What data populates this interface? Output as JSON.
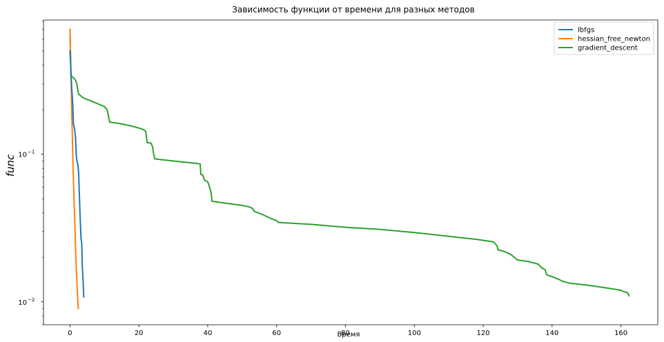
{
  "chart_data": {
    "type": "line",
    "title": "Зависимость функции от времени для разных методов",
    "xlabel": "Время",
    "ylabel": "func",
    "xlim": [
      -7.7,
      170.7
    ],
    "ylim_log10": [
      -2.155,
      -0.091
    ],
    "y_scale": "log",
    "grid": false,
    "legend_position": "top-right",
    "x_ticks": [
      {
        "value": 0,
        "label": "0"
      },
      {
        "value": 20,
        "label": "20"
      },
      {
        "value": 40,
        "label": "40"
      },
      {
        "value": 60,
        "label": "60"
      },
      {
        "value": 80,
        "label": "80"
      },
      {
        "value": 100,
        "label": "100"
      },
      {
        "value": 120,
        "label": "120"
      },
      {
        "value": 140,
        "label": "140"
      },
      {
        "value": 160,
        "label": "160"
      }
    ],
    "y_major_ticks": [
      {
        "value": 0.01,
        "base": "10",
        "exp": "−2"
      },
      {
        "value": 0.1,
        "base": "10",
        "exp": "−1"
      }
    ],
    "series": [
      {
        "name": "lbfgs",
        "color": "#1f77b4",
        "points": [
          [
            0.0,
            0.5
          ],
          [
            0.3,
            0.35
          ],
          [
            0.5,
            0.28
          ],
          [
            0.8,
            0.22
          ],
          [
            1.0,
            0.16
          ],
          [
            1.3,
            0.15
          ],
          [
            1.6,
            0.13
          ],
          [
            1.8,
            0.1
          ],
          [
            2.0,
            0.09
          ],
          [
            2.3,
            0.085
          ],
          [
            2.5,
            0.075
          ],
          [
            2.7,
            0.055
          ],
          [
            2.9,
            0.04
          ],
          [
            3.0,
            0.035
          ],
          [
            3.2,
            0.027
          ],
          [
            3.4,
            0.025
          ],
          [
            3.6,
            0.017
          ],
          [
            3.8,
            0.014
          ],
          [
            4.0,
            0.0108
          ]
        ]
      },
      {
        "name": "hessian_free_newton",
        "color": "#ff7f0e",
        "points": [
          [
            0.0,
            0.7
          ],
          [
            0.5,
            0.2
          ],
          [
            0.9,
            0.08
          ],
          [
            1.3,
            0.04
          ],
          [
            1.7,
            0.02
          ],
          [
            2.1,
            0.012
          ],
          [
            2.4,
            0.009
          ]
        ]
      },
      {
        "name": "gradient_descent",
        "color": "#2ca02c",
        "points": [
          [
            0.0,
            0.7
          ],
          [
            0.3,
            0.34
          ],
          [
            1.0,
            0.33
          ],
          [
            1.5,
            0.32
          ],
          [
            2.0,
            0.3
          ],
          [
            2.3,
            0.27
          ],
          [
            2.5,
            0.255
          ],
          [
            4.0,
            0.24
          ],
          [
            6.0,
            0.23
          ],
          [
            8.0,
            0.22
          ],
          [
            10.0,
            0.21
          ],
          [
            10.8,
            0.2
          ],
          [
            11.2,
            0.18
          ],
          [
            11.5,
            0.165
          ],
          [
            14.0,
            0.162
          ],
          [
            18.0,
            0.155
          ],
          [
            21.0,
            0.148
          ],
          [
            22.0,
            0.143
          ],
          [
            22.4,
            0.12
          ],
          [
            23.5,
            0.119
          ],
          [
            24.0,
            0.112
          ],
          [
            24.3,
            0.1
          ],
          [
            24.6,
            0.093
          ],
          [
            28.0,
            0.091
          ],
          [
            32.0,
            0.089
          ],
          [
            36.0,
            0.087
          ],
          [
            37.8,
            0.086
          ],
          [
            38.0,
            0.073
          ],
          [
            38.6,
            0.072
          ],
          [
            39.0,
            0.067
          ],
          [
            40.0,
            0.065
          ],
          [
            40.5,
            0.06
          ],
          [
            41.0,
            0.055
          ],
          [
            41.2,
            0.048
          ],
          [
            44.0,
            0.047
          ],
          [
            47.0,
            0.046
          ],
          [
            50.0,
            0.045
          ],
          [
            52.0,
            0.044
          ],
          [
            53.0,
            0.043
          ],
          [
            53.5,
            0.041
          ],
          [
            56.0,
            0.039
          ],
          [
            58.0,
            0.037
          ],
          [
            60.0,
            0.0355
          ],
          [
            60.5,
            0.0345
          ],
          [
            70.0,
            0.0335
          ],
          [
            80.0,
            0.032
          ],
          [
            90.0,
            0.031
          ],
          [
            100.0,
            0.0295
          ],
          [
            110.0,
            0.0278
          ],
          [
            118.0,
            0.0265
          ],
          [
            123.0,
            0.0255
          ],
          [
            124.0,
            0.024
          ],
          [
            124.3,
            0.0225
          ],
          [
            126.0,
            0.022
          ],
          [
            128.0,
            0.021
          ],
          [
            129.0,
            0.02
          ],
          [
            130.0,
            0.0192
          ],
          [
            133.0,
            0.0188
          ],
          [
            136.0,
            0.018
          ],
          [
            137.0,
            0.017
          ],
          [
            138.0,
            0.0165
          ],
          [
            138.4,
            0.0153
          ],
          [
            140.0,
            0.0148
          ],
          [
            142.0,
            0.0142
          ],
          [
            143.0,
            0.0138
          ],
          [
            145.0,
            0.0134
          ],
          [
            150.0,
            0.013
          ],
          [
            155.0,
            0.0125
          ],
          [
            160.0,
            0.012
          ],
          [
            160.5,
            0.0118
          ],
          [
            162.0,
            0.0115
          ],
          [
            162.3,
            0.011
          ]
        ]
      }
    ]
  }
}
